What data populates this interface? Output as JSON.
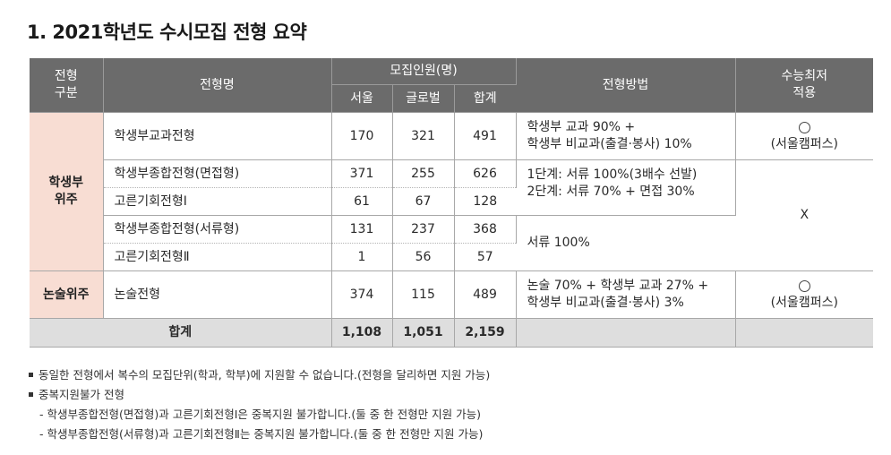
{
  "title": "1. 2021학년도 수시모집 전형 요약",
  "headers": {
    "category": "전형\n구분",
    "name": "전형명",
    "recruit": "모집인원(명)",
    "seoul": "서울",
    "global": "글로벌",
    "total": "합계",
    "method": "전형방법",
    "csat": "수능최저\n적용"
  },
  "rows": [
    {
      "name": "학생부교과전형",
      "seoul": "170",
      "global": "321",
      "total": "491"
    },
    {
      "name": "학생부종합전형(면접형)",
      "seoul": "371",
      "global": "255",
      "total": "626"
    },
    {
      "name": "고른기회전형Ⅰ",
      "seoul": "61",
      "global": "67",
      "total": "128"
    },
    {
      "name": "학생부종합전형(서류형)",
      "seoul": "131",
      "global": "237",
      "total": "368"
    },
    {
      "name": "고른기회전형Ⅱ",
      "seoul": "1",
      "global": "56",
      "total": "57"
    },
    {
      "name": "논술전형",
      "seoul": "374",
      "global": "115",
      "total": "489"
    }
  ],
  "categories": {
    "record": "학생부\n위주",
    "essay": "논술위주"
  },
  "methods": {
    "m1_line1": "학생부 교과 90% +",
    "m1_line2": "학생부 비교과(출결·봉사) 10%",
    "m2_line1": "1단계: 서류 100%(3배수 선발)",
    "m2_line2": "2단계: 서류 70% + 면접 30%",
    "m3": "서류 100%",
    "m4_line1": "논술 70% + 학생부 교과 27% +",
    "m4_line2": "학생부 비교과(출결·봉사) 3%"
  },
  "csat": {
    "campus": "(서울캠퍼스)",
    "none": "X"
  },
  "totals": {
    "label": "합계",
    "seoul": "1,108",
    "global": "1,051",
    "total": "2,159"
  },
  "notes": [
    "동일한 전형에서 복수의 모집단위(학과, 학부)에 지원할 수 없습니다.(전형을 달리하면 지원 가능)",
    "중복지원불가 전형",
    "- 학생부종합전형(면접형)과 고른기회전형Ⅰ은 중복지원 불가합니다.(둘 중 한 전형만 지원 가능)",
    "- 학생부종합전형(서류형)과 고른기회전형Ⅱ는 중복지원 불가합니다.(둘 중 한 전형만 지원 가능)"
  ]
}
